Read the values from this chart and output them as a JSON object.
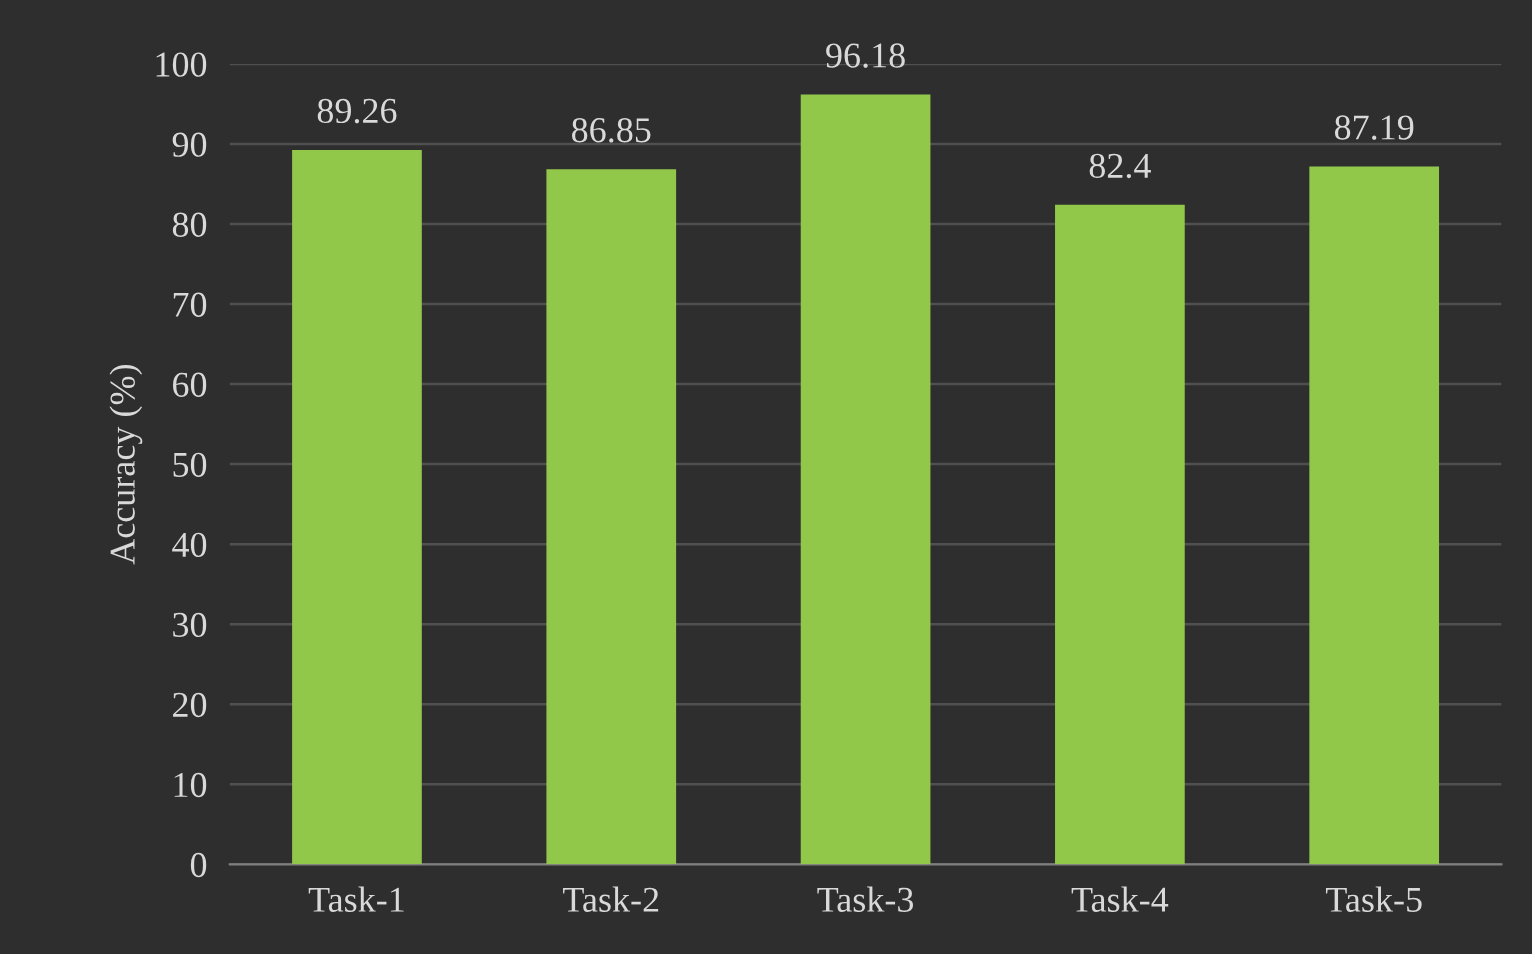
{
  "chart_data": {
    "type": "bar",
    "ylabel": "Accuracy (%)",
    "categories": [
      "Task-1",
      "Task-2",
      "Task-3",
      "Task-4",
      "Task-5"
    ],
    "values": [
      89.26,
      86.85,
      96.18,
      82.4,
      87.19
    ],
    "color": "#92c84a",
    "ylim": [
      0,
      100
    ],
    "yticks": [
      0,
      10,
      20,
      30,
      40,
      50,
      60,
      70,
      80,
      90,
      100
    ],
    "grid": "y",
    "data_labels": true
  }
}
